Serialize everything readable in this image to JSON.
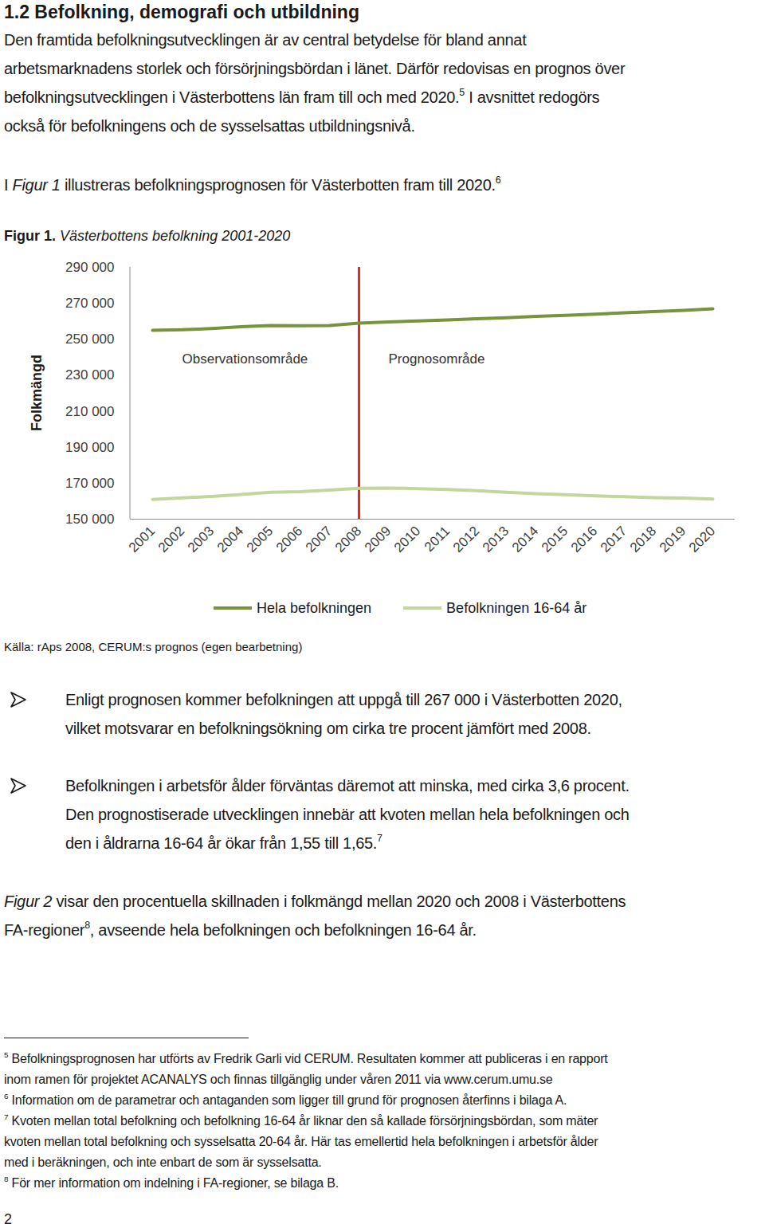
{
  "document": {
    "heading": "1.2 Befolkning, demografi och utbildning",
    "intro": [
      [
        "Den framtida befolkningsutvecklingen är av central betydelse för bland annat"
      ],
      [
        "arbetsmarknadens storlek och försörjningsbördan i länet. Därför redovisas en prognos över"
      ],
      [
        "befolkningsutvecklingen i Västerbottens län fram till och med 2020.",
        {
          "text": "5",
          "style": "sup"
        },
        " I avsnittet redogörs"
      ],
      [
        "också för befolkningens och de sysselsattas utbildningsnivå."
      ]
    ],
    "figure_intro": [
      [
        "I ",
        {
          "text": "Figur 1",
          "style": "italic"
        },
        " illustreras befolkningsprognosen för Västerbotten fram till 2020.",
        {
          "text": "6",
          "style": "sup"
        }
      ]
    ],
    "figure_caption": [
      [
        {
          "text": "Figur 1.",
          "style": "bold"
        },
        {
          "text": " Västerbottens befolkning 2001-2020",
          "style": "italic"
        }
      ]
    ],
    "figure_source": "Källa: rAps 2008, CERUM:s prognos (egen bearbetning)",
    "bullets": [
      [
        [
          "Enligt prognosen kommer befolkningen att uppgå till 267 000 i Västerbotten 2020,"
        ],
        [
          "vilket motsvarar en befolkningsökning om cirka tre procent jämfört med 2008."
        ]
      ],
      [
        [
          "Befolkningen i arbetsför ålder förväntas däremot att minska, med cirka 3,6 procent."
        ],
        [
          "Den prognostiserade utvecklingen innebär att kvoten mellan hela befolkningen och"
        ],
        [
          "den i åldrarna 16-64 år ökar från 1,55 till 1,65.",
          {
            "text": "7",
            "style": "sup"
          }
        ]
      ]
    ],
    "closing": [
      [
        {
          "text": "Figur 2",
          "style": "italic"
        },
        " visar den procentuella skillnaden i folkmängd mellan 2020 och 2008 i Västerbottens"
      ],
      [
        "FA-regioner",
        {
          "text": "8",
          "style": "sup"
        },
        ", avseende hela befolkningen och befolkningen 16-64 år."
      ]
    ],
    "footnotes": [
      [
        {
          "text": "5",
          "style": "sup"
        },
        " Befolkningsprognosen har utförts av Fredrik Garli vid CERUM. Resultaten kommer att publiceras i en rapport"
      ],
      [
        "inom ramen för projektet ACANALYS och finnas tillgänglig under våren 2011 via www.cerum.umu.se"
      ],
      [
        {
          "text": "6",
          "style": "sup"
        },
        " Information om de parametrar och antaganden som ligger till grund för prognosen återfinns i bilaga A."
      ],
      [
        {
          "text": "7",
          "style": "sup"
        },
        " Kvoten mellan total befolkning och befolkning 16-64 år liknar den så kallade försörjningsbördan, som mäter"
      ],
      [
        "kvoten mellan total befolkning och sysselsatta 20-64 år. Här tas emellertid hela befolkningen i arbetsför ålder"
      ],
      [
        "med i beräkningen, och inte enbart de som är sysselsatta."
      ],
      [
        {
          "text": "8",
          "style": "sup"
        },
        " För mer information om indelning i FA-regioner, se bilaga B."
      ]
    ],
    "page_number": "2"
  },
  "chart_data": {
    "type": "line",
    "ylabel": "Folkmängd",
    "categories": [
      "2001",
      "2002",
      "2003",
      "2004",
      "2005",
      "2006",
      "2007",
      "2008",
      "2009",
      "2010",
      "2011",
      "2012",
      "2013",
      "2014",
      "2015",
      "2016",
      "2017",
      "2018",
      "2019",
      "2020"
    ],
    "series": [
      {
        "name": "Hela befolkningen",
        "color": "#77933c",
        "values": [
          255000,
          255300,
          256000,
          257000,
          257700,
          257600,
          257700,
          259000,
          259600,
          260200,
          260800,
          261400,
          262000,
          262700,
          263300,
          264000,
          264700,
          265400,
          266100,
          267000
        ]
      },
      {
        "name": "Befolkningen 16-64 år",
        "color": "#c3d69b",
        "values": [
          161000,
          161800,
          162600,
          163700,
          165000,
          165300,
          166200,
          167200,
          167300,
          167000,
          166500,
          165800,
          165000,
          164200,
          163600,
          163000,
          162500,
          162000,
          161700,
          161200
        ]
      }
    ],
    "ylim": [
      150000,
      290000
    ],
    "yticks": [
      {
        "value": 150000,
        "label": "150 000"
      },
      {
        "value": 170000,
        "label": "170 000"
      },
      {
        "value": 190000,
        "label": "190 000"
      },
      {
        "value": 210000,
        "label": "210 000"
      },
      {
        "value": 230000,
        "label": "230 000"
      },
      {
        "value": 250000,
        "label": "250 000"
      },
      {
        "value": 270000,
        "label": "270 000"
      },
      {
        "value": 290000,
        "label": "290 000"
      }
    ],
    "annotations": [
      {
        "type": "vline",
        "x": "2008",
        "color": "#e8252b"
      },
      {
        "type": "text",
        "text": "Observationsområde",
        "x": "2002",
        "y": 239000
      },
      {
        "type": "text",
        "text": "Prognosområde",
        "x": "2009",
        "y": 239000
      }
    ],
    "grid": false,
    "legend": "bottom"
  }
}
